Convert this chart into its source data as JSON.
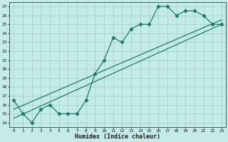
{
  "xlabel": "Humidex (Indice chaleur)",
  "ylabel": "",
  "background_color": "#c5ebe6",
  "grid_color": "#a0d4ce",
  "line_color": "#1e7a6e",
  "xlim": [
    -0.5,
    23.5
  ],
  "ylim": [
    13.5,
    27.5
  ],
  "xticks": [
    0,
    1,
    2,
    3,
    4,
    5,
    6,
    7,
    8,
    9,
    10,
    11,
    12,
    13,
    14,
    15,
    16,
    17,
    18,
    19,
    20,
    21,
    22,
    23
  ],
  "yticks": [
    14,
    15,
    16,
    17,
    18,
    19,
    20,
    21,
    22,
    23,
    24,
    25,
    26,
    27
  ],
  "curve_x": [
    0,
    1,
    2,
    3,
    4,
    5,
    6,
    7,
    8,
    9,
    10,
    11,
    12,
    13,
    14,
    15,
    16,
    17,
    18,
    19,
    20,
    21,
    22,
    23
  ],
  "curve_y": [
    16.5,
    15.0,
    14.0,
    15.5,
    16.0,
    15.0,
    15.0,
    15.0,
    16.5,
    19.5,
    21.0,
    23.5,
    23.0,
    24.5,
    25.0,
    25.0,
    27.0,
    27.0,
    26.0,
    26.5,
    26.5,
    26.0,
    25.0,
    25.0
  ],
  "line1_x": [
    0,
    23
  ],
  "line1_y": [
    15.5,
    25.5
  ],
  "line2_x": [
    0,
    23
  ],
  "line2_y": [
    14.5,
    25.0
  ]
}
